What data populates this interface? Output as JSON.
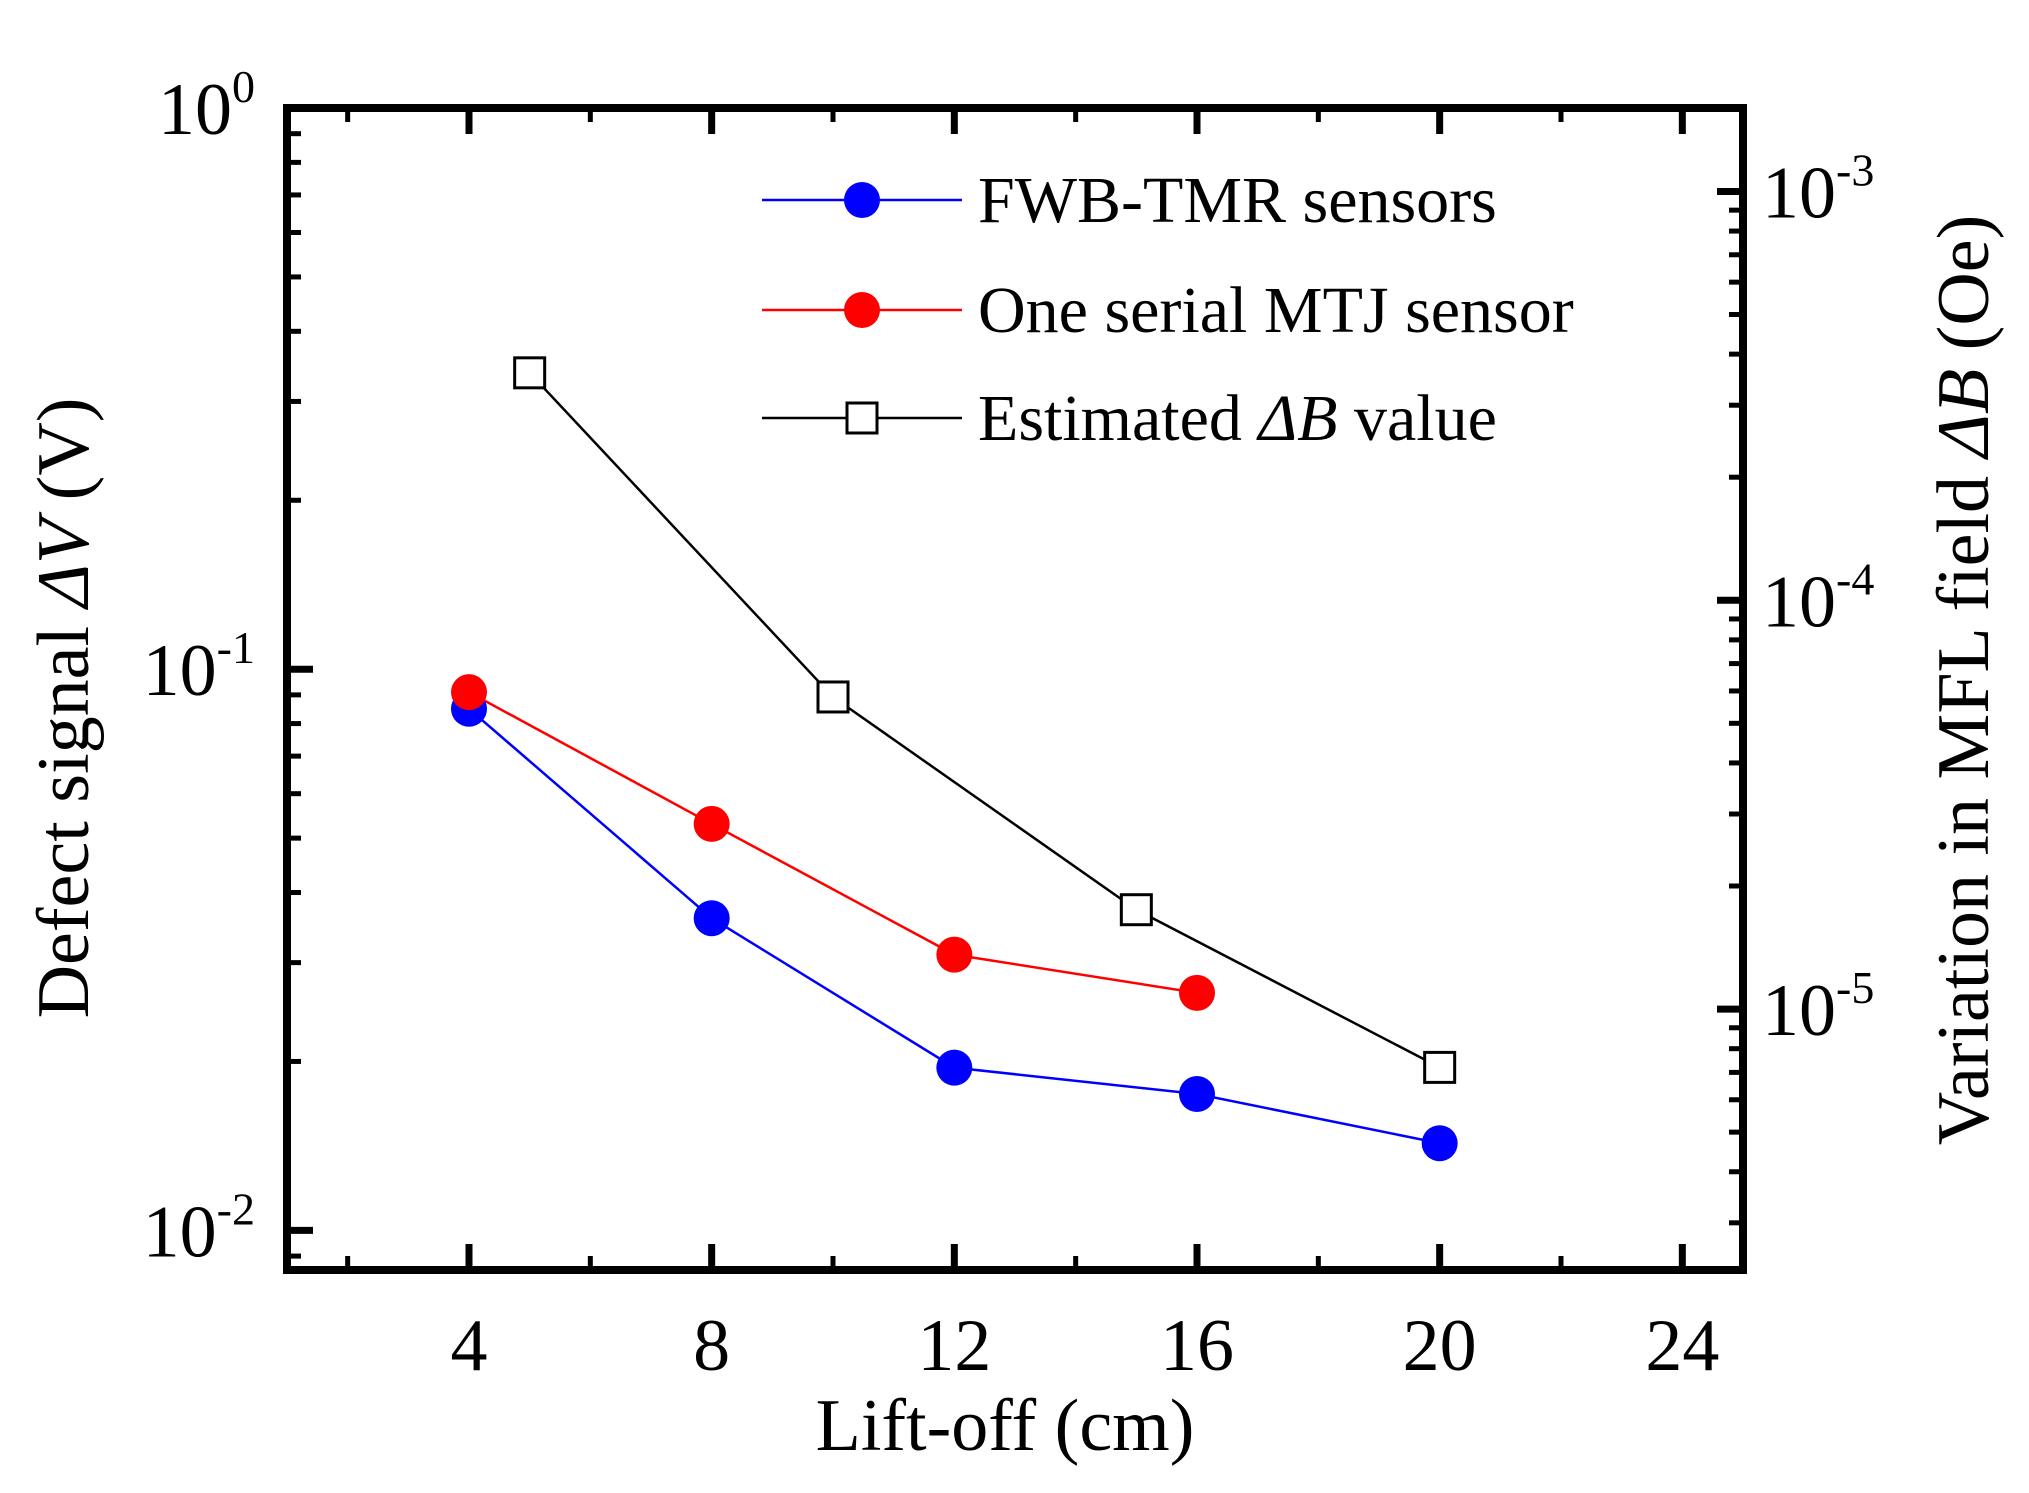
{
  "chart_data": {
    "type": "line",
    "xlabel": "Lift-off (cm)",
    "ylabel_prefix": "Defect signal ",
    "ylabel_symbol": "ΔV",
    "ylabel_suffix": " (V)",
    "y2label_prefix": "Variation in MFL field ",
    "y2label_symbol": "ΔB",
    "y2label_suffix": " (Oe)",
    "xlim": [
      1,
      25
    ],
    "xticks": [
      4,
      8,
      12,
      16,
      20,
      24
    ],
    "ylim": [
      0.0085,
      1.0
    ],
    "yscale": "log",
    "yticks": [
      {
        "base": "10",
        "exp": "0",
        "value": 1.0
      },
      {
        "base": "10",
        "exp": "-1",
        "value": 0.1
      },
      {
        "base": "10",
        "exp": "-2",
        "value": 0.01
      }
    ],
    "y2lim": [
      2.3e-06,
      0.0016
    ],
    "y2scale": "log",
    "y2ticks": [
      {
        "base": "10",
        "exp": "-3",
        "value": 0.001
      },
      {
        "base": "10",
        "exp": "-4",
        "value": 0.0001
      },
      {
        "base": "10",
        "exp": "-5",
        "value": 1e-05
      }
    ],
    "legend_position": "top-right",
    "series": [
      {
        "name": "FWB-TMR sensors",
        "axis": "left",
        "color": "#0000ff",
        "marker": "filled-circle",
        "x": [
          4,
          8,
          12,
          16,
          20
        ],
        "y": [
          0.085,
          0.036,
          0.0195,
          0.0175,
          0.0143
        ]
      },
      {
        "name": "One serial MTJ sensor",
        "axis": "left",
        "color": "#ff0000",
        "marker": "filled-circle",
        "x": [
          4,
          8,
          12,
          16
        ],
        "y": [
          0.091,
          0.053,
          0.031,
          0.0265
        ]
      },
      {
        "name_prefix": "Estimated ",
        "name_symbol": "ΔB",
        "name_suffix": " value",
        "axis": "right",
        "color": "#000000",
        "marker": "open-square",
        "x": [
          5,
          10,
          15,
          20
        ],
        "y": [
          0.00036,
          5.8e-05,
          1.75e-05,
          7.2e-06
        ]
      }
    ]
  }
}
